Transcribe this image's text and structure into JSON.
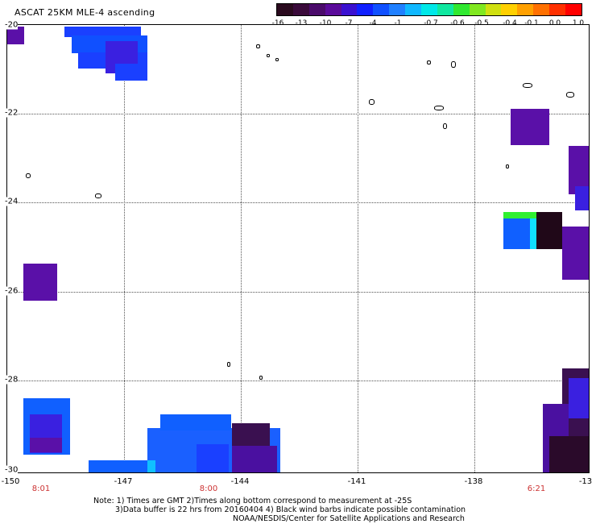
{
  "title": "ASCAT 25KM MLE-4 ascending",
  "colorbar": {
    "colors": [
      "#2a0a1e",
      "#3a0a3a",
      "#4a0a6a",
      "#5a0a9a",
      "#3a10d0",
      "#1020ff",
      "#1050ff",
      "#2080ff",
      "#10b8ff",
      "#00e8e8",
      "#10e8a0",
      "#30e830",
      "#80e820",
      "#d0e010",
      "#ffd000",
      "#ffa000",
      "#ff7000",
      "#ff3000",
      "#ff0000"
    ],
    "tick_labels": [
      "-16",
      "-13",
      "-10",
      "-7",
      "-4",
      "-1",
      "-0.7",
      "-0.6",
      "-0.5",
      "-0.4",
      "-0.1",
      "0.0",
      "1.0"
    ]
  },
  "axes": {
    "x_labels": [
      "-150",
      "-147",
      "-144",
      "-141",
      "-138",
      "-13"
    ],
    "y_labels": [
      "-20",
      "-22",
      "-24",
      "-26",
      "-28",
      "-30"
    ],
    "time_labels": [
      "8:01",
      "8:00",
      "6:21"
    ]
  },
  "notes": {
    "line1": "Note: 1) Times are GMT 2)Times along bottom correspond to measurement at -25S",
    "line2": "3)Data buffer is 22 hrs from 20160404 4) Black wind barbs indicate possible contamination",
    "line3": "NOAA/NESDIS/Center for Satellite Applications and Research"
  },
  "palette": {
    "blue": "#1a40ff",
    "blue2": "#1060ff",
    "cyan": "#10e0ff",
    "purple": "#5a10a8",
    "dark": "#200818",
    "darkpurple": "#3a1050",
    "green": "#30f030"
  }
}
